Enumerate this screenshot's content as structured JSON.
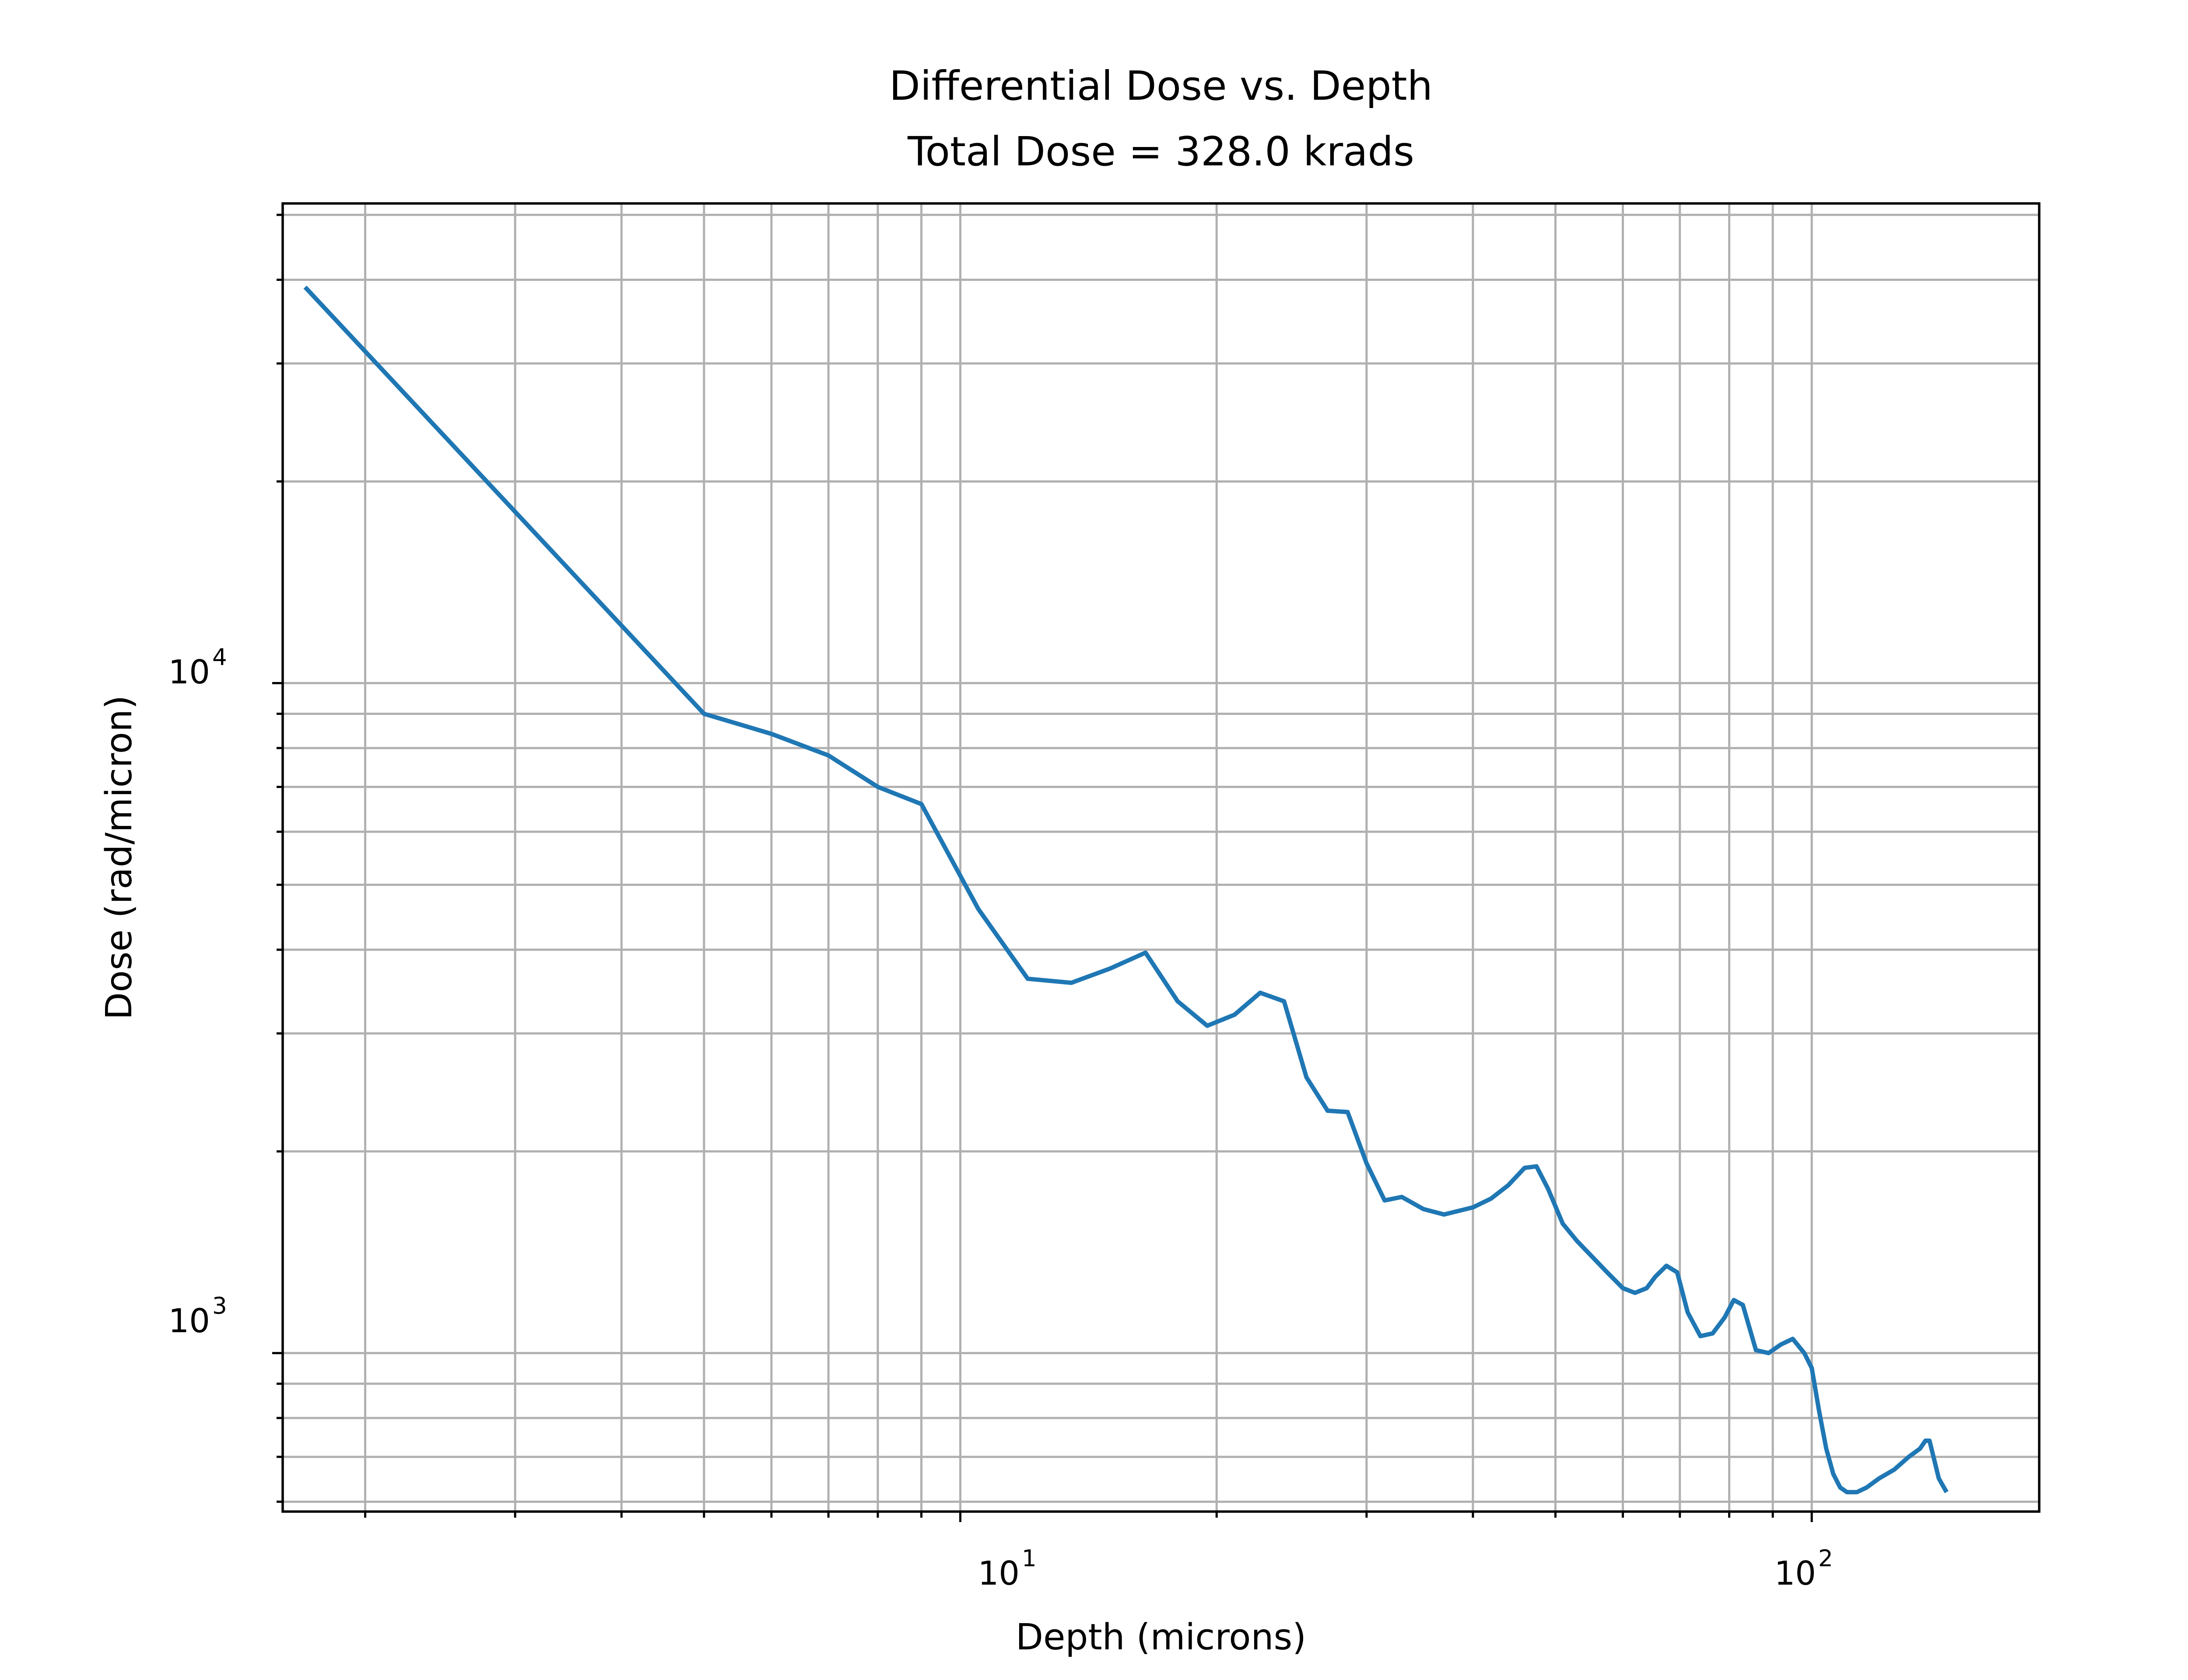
{
  "chart_data": {
    "type": "line",
    "title": "Differential Dose vs. Depth",
    "subtitle": "Total Dose = 328.0 krads",
    "xlabel": "Depth (microns)",
    "ylabel": "Dose (rad/micron)",
    "x_scale": "log",
    "y_scale": "log",
    "xlim": [
      1.6,
      185
    ],
    "ylim": [
      580,
      52000
    ],
    "grid": "major and minor",
    "x_ticks": [
      {
        "value": 10,
        "base": "10",
        "exp": "1"
      },
      {
        "value": 100,
        "base": "10",
        "exp": "2"
      }
    ],
    "y_ticks": [
      {
        "value": 1000,
        "base": "10",
        "exp": "3"
      },
      {
        "value": 10000,
        "base": "10",
        "exp": "4"
      }
    ],
    "line_color": "#1f77b4",
    "grid_color": "#b0b0b0",
    "series": [
      {
        "x": [
          1.7,
          5.0,
          6.0,
          7.0,
          8.0,
          9.0,
          10.5,
          12.0,
          13.5,
          15.0,
          16.5,
          18.0,
          19.5,
          21.0,
          22.5,
          24.0,
          25.5,
          27.0,
          28.5,
          30.0,
          31.5,
          33.0,
          35.0,
          37.0,
          40.0,
          42.0,
          44.0,
          46.0,
          47.5,
          49.0,
          51.0,
          53.0,
          55.0,
          57.5,
          60.0,
          62.0,
          64.0,
          65.5,
          67.5,
          69.5,
          71.5,
          74.0,
          76.5,
          79.0,
          81.0,
          83.0,
          86.0,
          89.0,
          92.0,
          95.0,
          98.0,
          100.0,
          102.0,
          104.0,
          106.0,
          108.0,
          110.0,
          113.0,
          116.0,
          120.0,
          125.0,
          130.0,
          134.0,
          136.0,
          137.5,
          139.0,
          141.0,
          144.0
        ],
        "y": [
          39000,
          9000,
          8400,
          7800,
          7000,
          6600,
          4600,
          3620,
          3570,
          3750,
          3960,
          3350,
          3080,
          3200,
          3450,
          3350,
          2580,
          2300,
          2290,
          1920,
          1690,
          1710,
          1640,
          1610,
          1650,
          1700,
          1780,
          1890,
          1900,
          1760,
          1560,
          1470,
          1400,
          1320,
          1250,
          1230,
          1250,
          1300,
          1350,
          1320,
          1150,
          1060,
          1070,
          1130,
          1200,
          1180,
          1010,
          1000,
          1030,
          1050,
          1000,
          950,
          820,
          720,
          660,
          630,
          620,
          620,
          630,
          650,
          670,
          700,
          720,
          740,
          740,
          700,
          650,
          620
        ]
      }
    ]
  }
}
